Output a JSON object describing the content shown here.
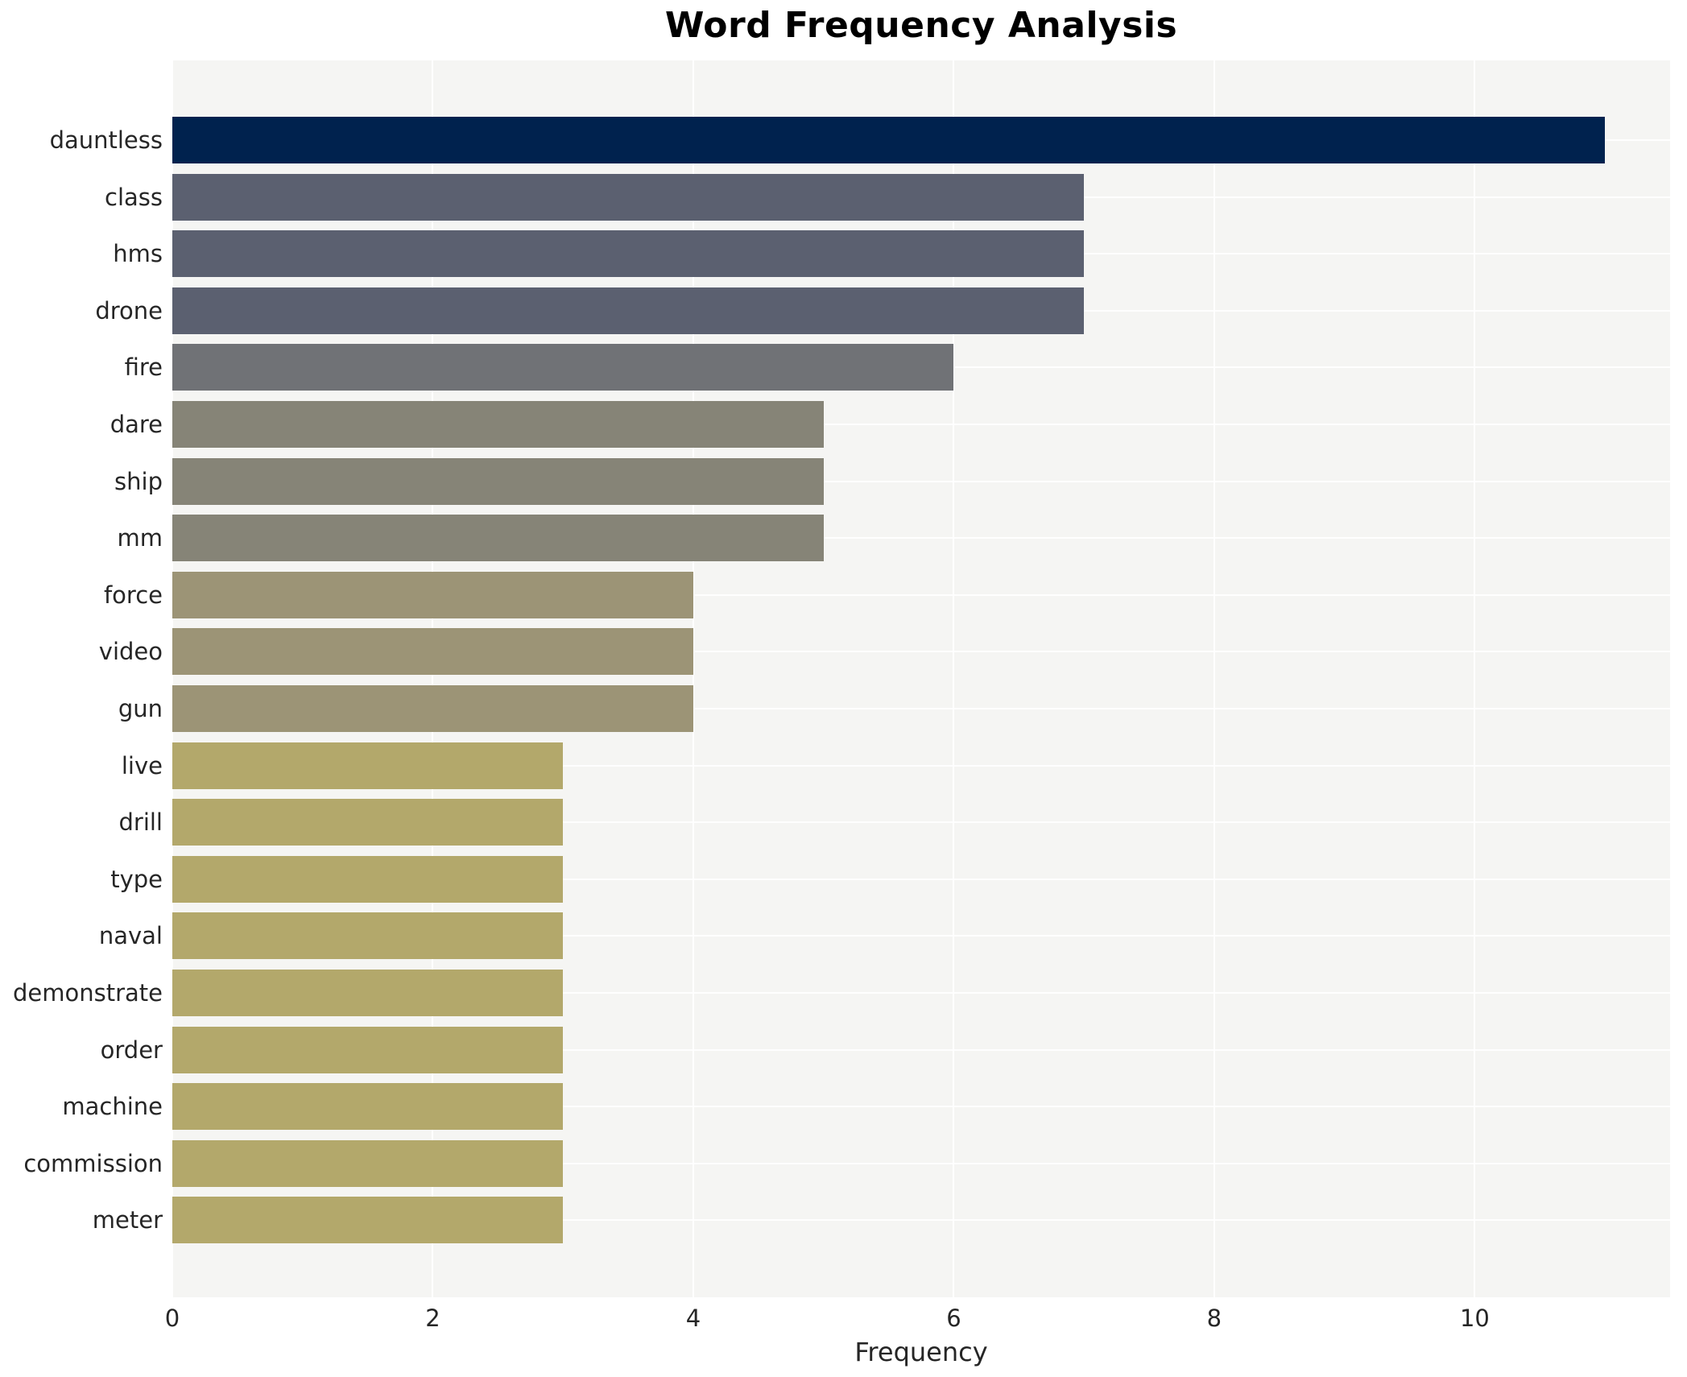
{
  "title": "Word Frequency Analysis",
  "chart_data": {
    "type": "bar",
    "orientation": "horizontal",
    "title": "Word Frequency Analysis",
    "xlabel": "Frequency",
    "ylabel": "",
    "categories": [
      "dauntless",
      "class",
      "hms",
      "drone",
      "fire",
      "dare",
      "ship",
      "mm",
      "force",
      "video",
      "gun",
      "live",
      "drill",
      "type",
      "naval",
      "demonstrate",
      "order",
      "machine",
      "commission",
      "meter"
    ],
    "values": [
      11,
      7,
      7,
      7,
      6,
      5,
      5,
      5,
      4,
      4,
      4,
      3,
      3,
      3,
      3,
      3,
      3,
      3,
      3,
      3
    ],
    "bar_colors": [
      "#00224e",
      "#5b6070",
      "#5b6070",
      "#5b6070",
      "#707276",
      "#868477",
      "#868477",
      "#868477",
      "#9c9476",
      "#9c9476",
      "#9c9476",
      "#b3a86b",
      "#b3a86b",
      "#b3a86b",
      "#b3a86b",
      "#b3a86b",
      "#b3a86b",
      "#b3a86b",
      "#b3a86b",
      "#b3a86b"
    ],
    "xticks": [
      "0",
      "2",
      "4",
      "6",
      "8",
      "10"
    ],
    "xtick_values": [
      0,
      2,
      4,
      6,
      8,
      10
    ],
    "xlim": [
      0,
      11.5
    ],
    "grid": true,
    "legend": false,
    "plot_bg_color": "#f5f5f3",
    "grid_color": "#ffffff",
    "title_color": "#000000",
    "label_color": "#262626"
  }
}
